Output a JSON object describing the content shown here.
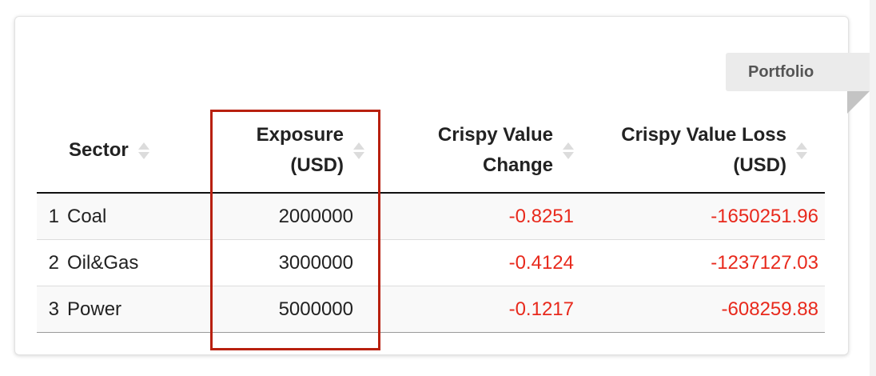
{
  "ribbon": {
    "label": "Portfolio"
  },
  "table": {
    "headers": {
      "sector": "Sector",
      "exposure_line1": "Exposure",
      "exposure_line2": "(USD)",
      "change_line1": "Crispy Value",
      "change_line2": "Change",
      "loss_line1": "Crispy Value Loss",
      "loss_line2": "(USD)"
    },
    "rows": [
      {
        "index": "1",
        "sector": "Coal",
        "exposure": "2000000",
        "change": "-0.8251",
        "loss": "-1650251.96"
      },
      {
        "index": "2",
        "sector": "Oil&Gas",
        "exposure": "3000000",
        "change": "-0.4124",
        "loss": "-1237127.03"
      },
      {
        "index": "3",
        "sector": "Power",
        "exposure": "5000000",
        "change": "-0.1217",
        "loss": "-608259.88"
      }
    ]
  },
  "colors": {
    "negative_value": "#e8291c",
    "highlight_border": "#b8200f",
    "ribbon_background": "#ebebeb"
  },
  "icons": {
    "sort": "sort-both-icon"
  }
}
